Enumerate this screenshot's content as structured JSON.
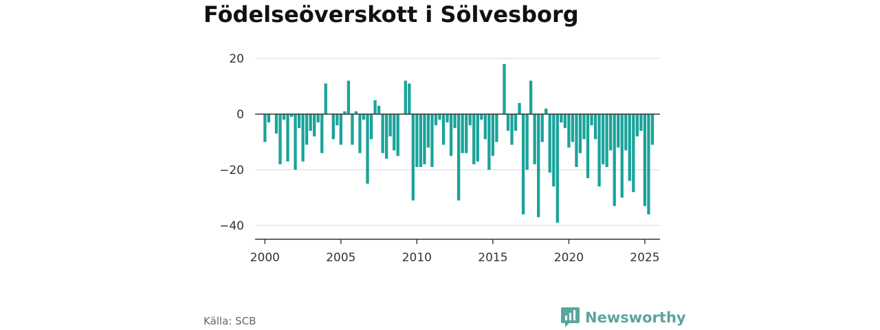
{
  "title": "Födelseöverskott i Sölvesborg",
  "source": "Källa: SCB",
  "brand": {
    "name": "Newsworthy",
    "icon": "newsworthy-logo-icon"
  },
  "colors": {
    "bar": "#1aa39a",
    "grid": "#dddddd",
    "axis": "#333333",
    "brand": "#5aa59e"
  },
  "chart_data": {
    "type": "bar",
    "title": "Födelseöverskott i Sölvesborg",
    "xlabel": "",
    "ylabel": "",
    "x_ticks": [
      2000,
      2005,
      2010,
      2015,
      2020,
      2025
    ],
    "y_ticks": [
      20,
      0,
      -20,
      -40
    ],
    "y_tick_labels": [
      "20",
      "0",
      "−20",
      "−40"
    ],
    "ylim": [
      -45,
      20
    ],
    "xlim": [
      1999.35,
      2026.0
    ],
    "grid": true,
    "x_step": 0.25,
    "x_start": 2000.0,
    "values": [
      -10,
      -3,
      0,
      -7,
      -18,
      -2,
      -17,
      -1,
      -20,
      -5,
      -17,
      -11,
      -6,
      -8,
      -3,
      -14,
      11,
      0,
      -9,
      -4,
      -11,
      1,
      12,
      -11,
      1,
      -14,
      -2,
      -25,
      -9,
      5,
      3,
      -14,
      -16,
      -8,
      -13,
      -15,
      0,
      12,
      11,
      -31,
      -19,
      -19,
      -18,
      -12,
      -19,
      -4,
      -2,
      -11,
      -3,
      -15,
      -5,
      -31,
      -14,
      -14,
      -4,
      -18,
      -17,
      -2,
      -9,
      -20,
      -15,
      -10,
      0,
      18,
      -6,
      -11,
      -6,
      4,
      -36,
      -20,
      12,
      -18,
      -37,
      -10,
      2,
      -21,
      -26,
      -39,
      -3,
      -5,
      -12,
      -10,
      -19,
      -14,
      -9,
      -23,
      -4,
      -9,
      -26,
      -18,
      -19,
      -13,
      -33,
      -12,
      -30,
      -13,
      -24,
      -28,
      -8,
      -6,
      -33,
      -36,
      -11
    ]
  }
}
